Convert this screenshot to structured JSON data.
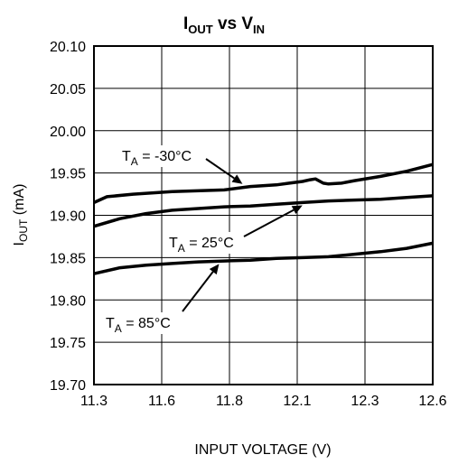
{
  "chart_data": {
    "type": "line",
    "title": {
      "main": "I",
      "main_sub": "OUT",
      "mid": " vs V",
      "mid_sub": "IN"
    },
    "xlabel": "INPUT VOLTAGE (V)",
    "ylabel": {
      "main": "I",
      "sub": "OUT",
      "rest": " (mA)"
    },
    "xlim": [
      11.3,
      12.6
    ],
    "ylim": [
      19.7,
      20.1
    ],
    "x_ticks": [
      "11.3",
      "11.6",
      "11.8",
      "12.1",
      "12.3",
      "12.6"
    ],
    "y_ticks": [
      "20.10",
      "20.05",
      "20.00",
      "19.95",
      "19.90",
      "19.85",
      "19.80",
      "19.75",
      "19.70"
    ],
    "grid": true,
    "series": [
      {
        "name": "T_A = -30°C",
        "x": [
          11.3,
          11.35,
          11.45,
          11.6,
          11.8,
          11.9,
          12.0,
          12.05,
          12.1,
          12.13,
          12.15,
          12.18,
          12.2,
          12.25,
          12.3,
          12.4,
          12.5,
          12.6
        ],
        "y": [
          19.915,
          19.922,
          19.925,
          19.928,
          19.93,
          19.934,
          19.936,
          19.938,
          19.94,
          19.942,
          19.943,
          19.938,
          19.937,
          19.938,
          19.941,
          19.946,
          19.952,
          19.96
        ]
      },
      {
        "name": "T_A = 25°C",
        "x": [
          11.3,
          11.4,
          11.5,
          11.6,
          11.7,
          11.8,
          11.9,
          12.0,
          12.1,
          12.2,
          12.3,
          12.4,
          12.5,
          12.6
        ],
        "y": [
          19.887,
          19.896,
          19.902,
          19.906,
          19.908,
          19.91,
          19.911,
          19.913,
          19.915,
          19.917,
          19.918,
          19.919,
          19.921,
          19.923
        ]
      },
      {
        "name": "T_A = 85°C",
        "x": [
          11.3,
          11.4,
          11.5,
          11.6,
          11.7,
          11.8,
          11.9,
          12.0,
          12.1,
          12.2,
          12.3,
          12.4,
          12.5,
          12.6
        ],
        "y": [
          19.831,
          19.838,
          19.841,
          19.843,
          19.845,
          19.846,
          19.847,
          19.849,
          19.85,
          19.851,
          19.854,
          19.857,
          19.861,
          19.867
        ]
      }
    ],
    "annotations": [
      {
        "main": "T",
        "sub": "A",
        "rest": " = -30°C",
        "series": 0,
        "point_x": 11.87
      },
      {
        "main": "T",
        "sub": "A",
        "rest": " = 25°C",
        "series": 1,
        "point_x": 12.1
      },
      {
        "main": "T",
        "sub": "A",
        "rest": " = 85°C",
        "series": 2,
        "point_x": 11.78
      }
    ]
  }
}
